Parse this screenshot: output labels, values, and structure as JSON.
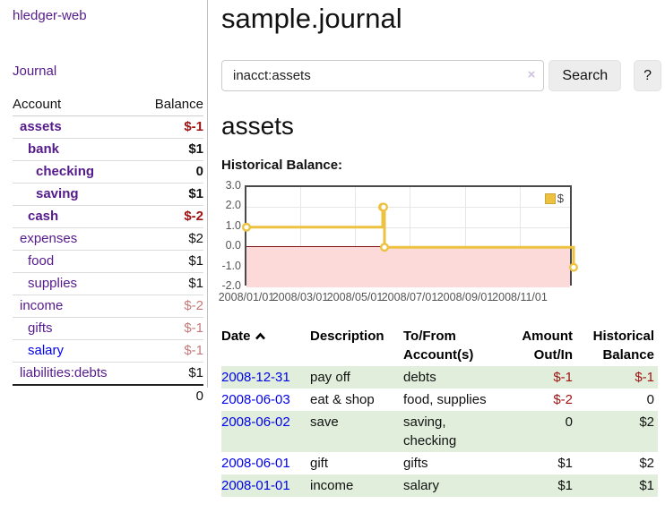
{
  "app": {
    "title": "hledger-web"
  },
  "sidebar": {
    "journal_link": "Journal",
    "accounts": {
      "col_account": "Account",
      "col_balance": "Balance",
      "rows": [
        {
          "name": "assets",
          "balance": "$-1"
        },
        {
          "name": "bank",
          "balance": "$1"
        },
        {
          "name": "checking",
          "balance": "0"
        },
        {
          "name": "saving",
          "balance": "$1"
        },
        {
          "name": "cash",
          "balance": "$-2"
        },
        {
          "name": "expenses",
          "balance": "$2"
        },
        {
          "name": "food",
          "balance": "$1"
        },
        {
          "name": "supplies",
          "balance": "$1"
        },
        {
          "name": "income",
          "balance": "$-2"
        },
        {
          "name": "gifts",
          "balance": "$-1"
        },
        {
          "name": "salary",
          "balance": "$-1"
        },
        {
          "name": "liabilities:debts",
          "balance": "$1"
        }
      ],
      "total": "0"
    }
  },
  "main": {
    "title": "sample.journal",
    "search": {
      "value": "inacct:assets",
      "clear": "×",
      "search_button": "Search",
      "help_button": "?"
    },
    "account_heading": "assets",
    "chart_heading": "Historical Balance:"
  },
  "chart_data": {
    "type": "line",
    "title": "Historical Balance:",
    "legend": {
      "label": "$",
      "position": "top-right",
      "swatch_color": "#edc240"
    },
    "series": [
      {
        "name": "$",
        "color": "#edc240",
        "step": true,
        "marker": "circle",
        "points": [
          [
            "2008-01-01",
            1
          ],
          [
            "2008-06-01",
            2
          ],
          [
            "2008-06-02",
            2
          ],
          [
            "2008-06-03",
            0
          ],
          [
            "2008-12-31",
            -1
          ]
        ]
      }
    ],
    "x_range": [
      "2008-01-01",
      "2008-12-31"
    ],
    "x_tick_labels": [
      "2008/01/01",
      "2008/03/01",
      "2008/05/01",
      "2008/07/01",
      "2008/09/01",
      "2008/11/01"
    ],
    "y_tick_labels": [
      "3.0",
      "2.0",
      "1.0",
      "0.0",
      "-1.0",
      "-2.0"
    ],
    "ylim": [
      -2,
      3
    ],
    "grid": true,
    "negative_region_color": "#fcdada",
    "zero_line_color": "#7d1010"
  },
  "register": {
    "headers": {
      "date": "Date",
      "description": "Description",
      "tofrom": "To/From Account(s)",
      "amount": "Amount Out/In",
      "balance": "Historical Balance"
    },
    "rows": [
      {
        "date": "2008-12-31",
        "description": "pay off",
        "accounts": "debts",
        "amount": "$-1",
        "balance": "$-1"
      },
      {
        "date": "2008-06-03",
        "description": "eat & shop",
        "accounts": "food, supplies",
        "amount": "$-2",
        "balance": "0"
      },
      {
        "date": "2008-06-02",
        "description": "save",
        "accounts": "saving,\nchecking",
        "amount": "0",
        "balance": "$2"
      },
      {
        "date": "2008-06-01",
        "description": "gift",
        "accounts": "gifts",
        "amount": "$1",
        "balance": "$2"
      },
      {
        "date": "2008-01-01",
        "description": "income",
        "accounts": "salary",
        "amount": "$1",
        "balance": "$1"
      }
    ]
  }
}
